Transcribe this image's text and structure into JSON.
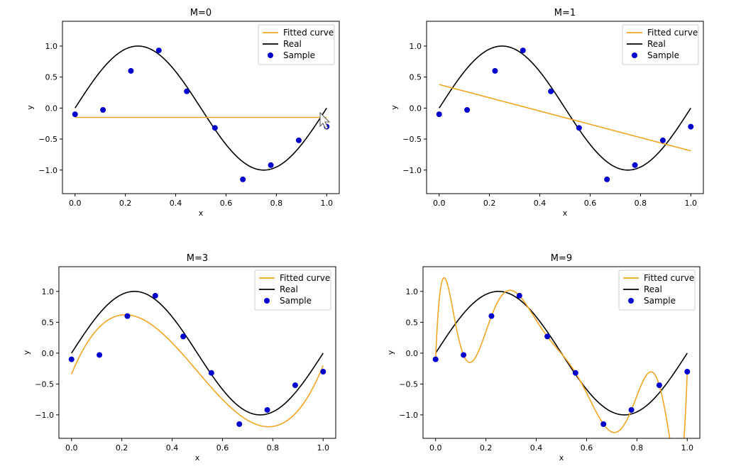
{
  "figure": {
    "colors": {
      "fitted": "#f0a524",
      "real": "#000000",
      "sample": "#0000cc",
      "frame": "#000000"
    }
  },
  "chart_data": [
    {
      "type": "line",
      "title": "M=0",
      "xlabel": "x",
      "ylabel": "y",
      "xlim": [
        -0.05,
        1.05
      ],
      "ylim": [
        -1.38,
        1.4
      ],
      "xticks": [
        0.0,
        0.2,
        0.4,
        0.6,
        0.8,
        1.0
      ],
      "xtick_labels": [
        "0.0",
        "0.2",
        "0.4",
        "0.6",
        "0.8",
        "1.0"
      ],
      "yticks": [
        1.0,
        0.5,
        0.0,
        -0.5,
        -1.0
      ],
      "ytick_labels": [
        "1.0",
        "0.5",
        "0.0",
        "−0.5",
        "−1.0"
      ],
      "legend": {
        "position": "upper right",
        "entries": [
          "Fitted curve",
          "Real",
          "Sample"
        ]
      },
      "fitted_coeffs": [
        -0.15
      ],
      "fitted_domain": [
        0.0,
        1.0
      ],
      "real": "sin(2*pi*x)",
      "samples": {
        "x": [
          0.0,
          0.111,
          0.222,
          0.333,
          0.444,
          0.556,
          0.667,
          0.778,
          0.889,
          1.0
        ],
        "y": [
          -0.1,
          -0.03,
          0.6,
          0.93,
          0.27,
          -0.32,
          -1.15,
          -0.92,
          -0.52,
          -0.3
        ]
      }
    },
    {
      "type": "line",
      "title": "M=1",
      "xlabel": "x",
      "ylabel": "y",
      "xlim": [
        -0.05,
        1.05
      ],
      "ylim": [
        -1.38,
        1.4
      ],
      "xticks": [
        0.0,
        0.2,
        0.4,
        0.6,
        0.8,
        1.0
      ],
      "xtick_labels": [
        "0.0",
        "0.2",
        "0.4",
        "0.6",
        "0.8",
        "1.0"
      ],
      "yticks": [
        1.0,
        0.5,
        0.0,
        -0.5,
        -1.0
      ],
      "ytick_labels": [
        "1.0",
        "0.5",
        "0.0",
        "−0.5",
        "−1.0"
      ],
      "legend": {
        "position": "upper right",
        "entries": [
          "Fitted curve",
          "Real",
          "Sample"
        ]
      },
      "fitted_coeffs": [
        0.38,
        -1.07
      ],
      "fitted_domain": [
        0.0,
        1.0
      ],
      "real": "sin(2*pi*x)",
      "samples": {
        "x": [
          0.0,
          0.111,
          0.222,
          0.333,
          0.444,
          0.556,
          0.667,
          0.778,
          0.889,
          1.0
        ],
        "y": [
          -0.1,
          -0.03,
          0.6,
          0.93,
          0.27,
          -0.32,
          -1.15,
          -0.92,
          -0.52,
          -0.3
        ]
      }
    },
    {
      "type": "line",
      "title": "M=3",
      "xlabel": "x",
      "ylabel": "y",
      "xlim": [
        -0.05,
        1.05
      ],
      "ylim": [
        -1.38,
        1.4
      ],
      "xticks": [
        0.0,
        0.2,
        0.4,
        0.6,
        0.8,
        1.0
      ],
      "xtick_labels": [
        "0.0",
        "0.2",
        "0.4",
        "0.6",
        "0.8",
        "1.0"
      ],
      "yticks": [
        1.0,
        0.5,
        0.0,
        -0.5,
        -1.0
      ],
      "ytick_labels": [
        "1.0",
        "0.5",
        "0.0",
        "−0.5",
        "−1.0"
      ],
      "legend": {
        "position": "upper right",
        "entries": [
          "Fitted curve",
          "Real",
          "Sample"
        ]
      },
      "fitted_coeffs": [
        -0.34,
        9.89,
        -29.43,
        19.68
      ],
      "fitted_domain": [
        0.0,
        1.0
      ],
      "real": "sin(2*pi*x)",
      "samples": {
        "x": [
          0.0,
          0.111,
          0.222,
          0.333,
          0.444,
          0.556,
          0.667,
          0.778,
          0.889,
          1.0
        ],
        "y": [
          -0.1,
          -0.03,
          0.6,
          0.93,
          0.27,
          -0.32,
          -1.15,
          -0.92,
          -0.52,
          -0.3
        ]
      }
    },
    {
      "type": "line",
      "title": "M=9",
      "xlabel": "x",
      "ylabel": "y",
      "xlim": [
        -0.05,
        1.05
      ],
      "ylim": [
        -1.38,
        1.4
      ],
      "xticks": [
        0.0,
        0.2,
        0.4,
        0.6,
        0.8,
        1.0
      ],
      "xtick_labels": [
        "0.0",
        "0.2",
        "0.4",
        "0.6",
        "0.8",
        "1.0"
      ],
      "yticks": [
        1.0,
        0.5,
        0.0,
        -0.5,
        -1.0
      ],
      "ytick_labels": [
        "1.0",
        "0.5",
        "0.0",
        "−0.5",
        "−1.0"
      ],
      "legend": {
        "position": "upper right",
        "entries": [
          "Fitted curve",
          "Real",
          "Sample"
        ]
      },
      "fitted_interpolate": true,
      "fitted_domain": [
        0.0,
        1.0
      ],
      "real": "sin(2*pi*x)",
      "samples": {
        "x": [
          0.0,
          0.111,
          0.222,
          0.333,
          0.444,
          0.556,
          0.667,
          0.778,
          0.889,
          1.0
        ],
        "y": [
          -0.1,
          -0.03,
          0.6,
          0.93,
          0.27,
          -0.32,
          -1.15,
          -0.92,
          -0.52,
          -0.3
        ]
      }
    }
  ]
}
